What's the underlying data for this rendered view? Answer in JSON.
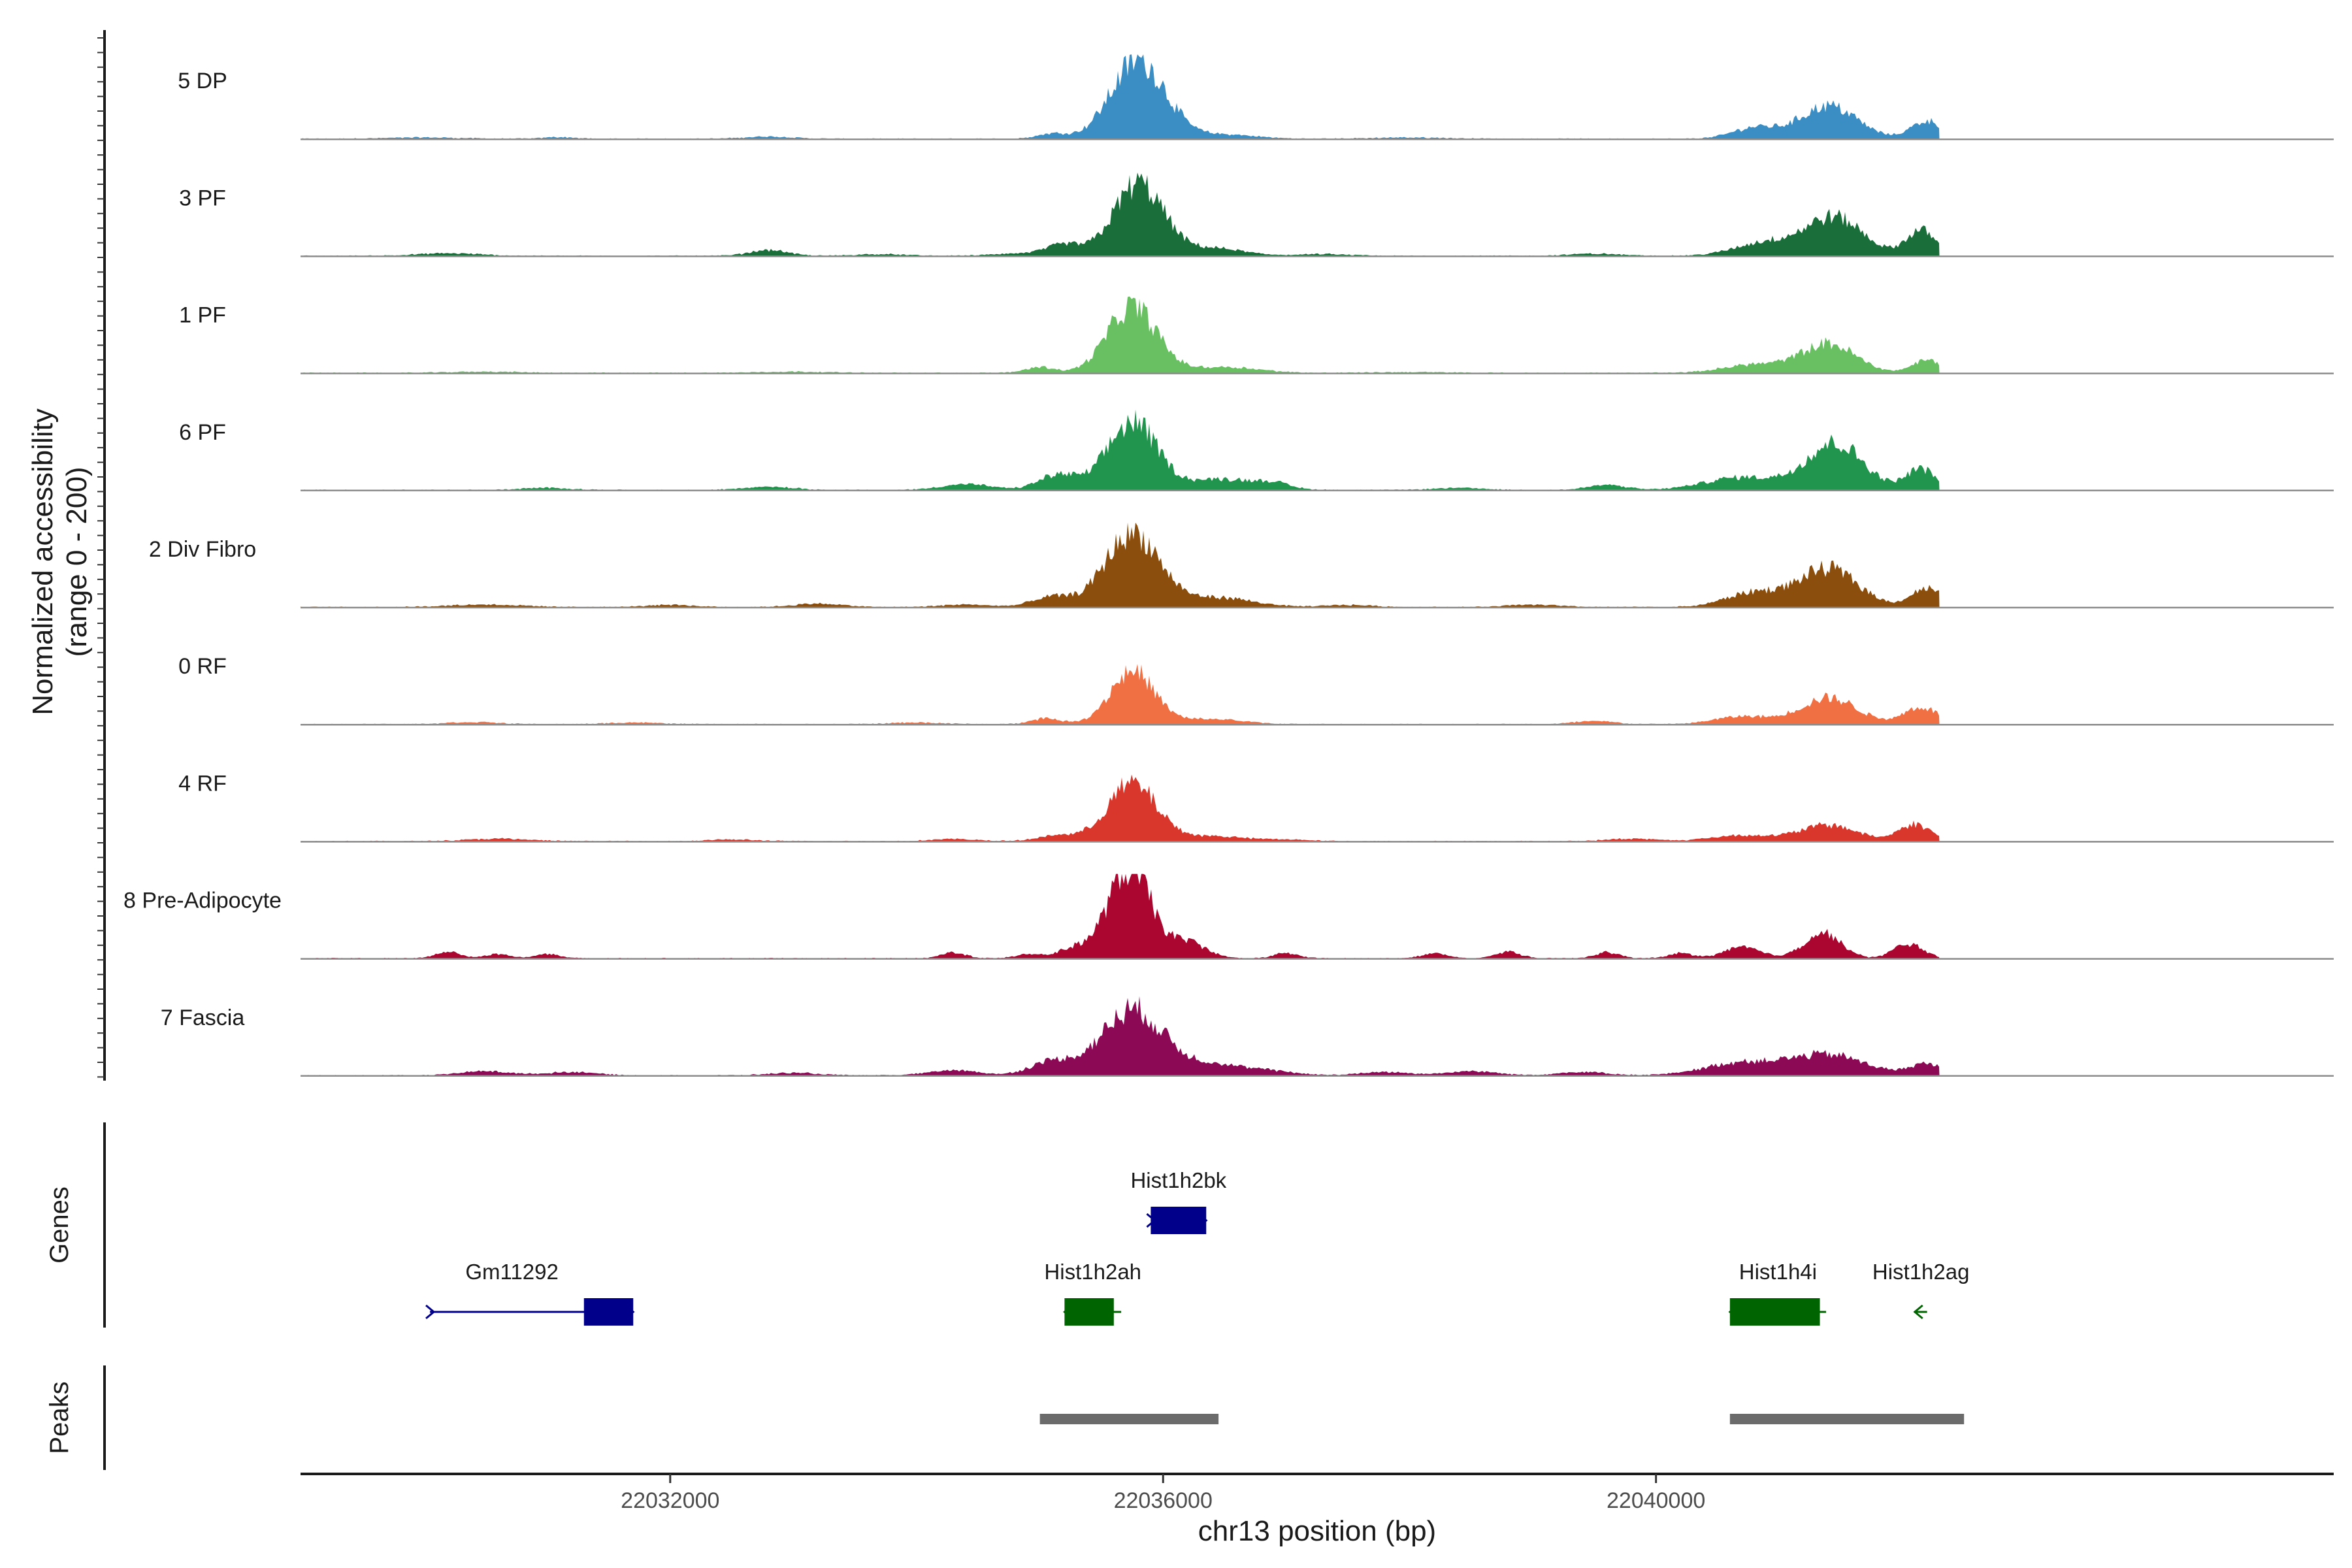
{
  "chart_data": {
    "type": "area",
    "title": "",
    "region": {
      "chromosome": "chr13",
      "start": 22029000,
      "end": 22045500
    },
    "xlabel": "chr13 position (bp)",
    "ylabel_line1": "Normalized accessibility",
    "ylabel_line2": "(range 0 - 200)",
    "ylim": [
      0,
      200
    ],
    "x_ticks": [
      22032000,
      22036000,
      22040000
    ],
    "x_tick_labels": [
      "22032000",
      "22036000",
      "22040000"
    ],
    "data_start": 22029000,
    "data_end": 22042300,
    "tracks": [
      {
        "name": "5 DP",
        "color": "#3a8ec4",
        "peaks": [
          [
            22035800,
            185,
            220
          ],
          [
            22035100,
            12,
            120
          ],
          [
            22036500,
            10,
            250
          ],
          [
            22041400,
            78,
            230
          ],
          [
            22040800,
            26,
            180
          ],
          [
            22042200,
            42,
            130
          ],
          [
            22030000,
            3,
            300
          ],
          [
            22031100,
            4,
            120
          ],
          [
            22032800,
            5,
            200
          ],
          [
            22038000,
            3,
            300
          ]
        ]
      },
      {
        "name": "3 PF",
        "color": "#1a6e3a",
        "peaks": [
          [
            22035800,
            170,
            200
          ],
          [
            22035200,
            26,
            150
          ],
          [
            22036400,
            18,
            250
          ],
          [
            22041450,
            90,
            230
          ],
          [
            22040900,
            32,
            250
          ],
          [
            22042150,
            60,
            120
          ],
          [
            22030200,
            6,
            250
          ],
          [
            22032800,
            14,
            150
          ],
          [
            22033700,
            4,
            200
          ],
          [
            22034800,
            5,
            200
          ],
          [
            22037300,
            4,
            200
          ],
          [
            22039500,
            5,
            200
          ]
        ]
      },
      {
        "name": "1 PF",
        "color": "#68c063",
        "peaks": [
          [
            22035750,
            155,
            200
          ],
          [
            22035000,
            14,
            120
          ],
          [
            22036500,
            14,
            280
          ],
          [
            22041400,
            68,
            220
          ],
          [
            22040800,
            20,
            250
          ],
          [
            22042200,
            30,
            120
          ],
          [
            22030500,
            3,
            300
          ],
          [
            22033000,
            3,
            300
          ],
          [
            22038000,
            2,
            300
          ]
        ]
      },
      {
        "name": "6 PF",
        "color": "#21954d",
        "peaks": [
          [
            22035750,
            160,
            200
          ],
          [
            22035150,
            36,
            160
          ],
          [
            22036500,
            26,
            300
          ],
          [
            22041450,
            110,
            230
          ],
          [
            22040700,
            30,
            300
          ],
          [
            22042150,
            50,
            120
          ],
          [
            22034400,
            14,
            200
          ],
          [
            22031000,
            5,
            200
          ],
          [
            22032800,
            8,
            200
          ],
          [
            22036900,
            10,
            120
          ],
          [
            22039600,
            12,
            150
          ],
          [
            22038400,
            5,
            200
          ]
        ]
      },
      {
        "name": "2 Div Fibro",
        "color": "#8b4e0c",
        "peaks": [
          [
            22035750,
            175,
            220
          ],
          [
            22035100,
            24,
            160
          ],
          [
            22036450,
            22,
            280
          ],
          [
            22041400,
            90,
            240
          ],
          [
            22040800,
            34,
            230
          ],
          [
            22042200,
            44,
            130
          ],
          [
            22030500,
            6,
            300
          ],
          [
            22032000,
            5,
            200
          ],
          [
            22033200,
            8,
            200
          ],
          [
            22034400,
            6,
            200
          ],
          [
            22037500,
            5,
            200
          ],
          [
            22039000,
            6,
            200
          ]
        ]
      },
      {
        "name": "0 RF",
        "color": "#f07044",
        "peaks": [
          [
            22035750,
            125,
            180
          ],
          [
            22035050,
            14,
            120
          ],
          [
            22036400,
            12,
            250
          ],
          [
            22041400,
            62,
            230
          ],
          [
            22040700,
            18,
            220
          ],
          [
            22042150,
            40,
            140
          ],
          [
            22030400,
            5,
            200
          ],
          [
            22031700,
            4,
            200
          ],
          [
            22034000,
            4,
            200
          ],
          [
            22039500,
            8,
            150
          ]
        ]
      },
      {
        "name": "4 RF",
        "color": "#d9362c",
        "peaks": [
          [
            22035750,
            135,
            200
          ],
          [
            22035150,
            14,
            160
          ],
          [
            22036400,
            12,
            250
          ],
          [
            22041400,
            38,
            230
          ],
          [
            22040700,
            14,
            250
          ],
          [
            22042100,
            40,
            130
          ],
          [
            22030600,
            6,
            250
          ],
          [
            22032500,
            4,
            200
          ],
          [
            22034300,
            5,
            200
          ],
          [
            22037000,
            4,
            200
          ],
          [
            22039800,
            6,
            200
          ]
        ]
      },
      {
        "name": "8 Pre-Adipocyte",
        "color": "#ab0630",
        "peaks": [
          [
            22035730,
            215,
            170
          ],
          [
            22035300,
            24,
            150
          ],
          [
            22036200,
            38,
            150
          ],
          [
            22041350,
            60,
            150
          ],
          [
            22040700,
            26,
            150
          ],
          [
            22042050,
            34,
            120
          ],
          [
            22030200,
            16,
            100
          ],
          [
            22030600,
            10,
            100
          ],
          [
            22031000,
            10,
            100
          ],
          [
            22034300,
            14,
            100
          ],
          [
            22034900,
            10,
            100
          ],
          [
            22037000,
            12,
            100
          ],
          [
            22038200,
            12,
            100
          ],
          [
            22038800,
            16,
            100
          ],
          [
            22039600,
            14,
            100
          ],
          [
            22040200,
            12,
            100
          ]
        ]
      },
      {
        "name": "7 Fascia",
        "color": "#8c0a55",
        "peaks": [
          [
            22035750,
            155,
            250
          ],
          [
            22035100,
            32,
            180
          ],
          [
            22036400,
            26,
            260
          ],
          [
            22041400,
            48,
            300
          ],
          [
            22040700,
            30,
            300
          ],
          [
            22042200,
            26,
            140
          ],
          [
            22030500,
            10,
            200
          ],
          [
            22031200,
            8,
            200
          ],
          [
            22033000,
            6,
            200
          ],
          [
            22034300,
            12,
            200
          ],
          [
            22036900,
            8,
            200
          ],
          [
            22037800,
            8,
            200
          ],
          [
            22038500,
            10,
            200
          ],
          [
            22039400,
            8,
            200
          ]
        ]
      }
    ],
    "genes": [
      {
        "name": "Hist1h2bk",
        "start": 22035900,
        "end": 22036350,
        "cds_start": 22035900,
        "cds_end": 22036350,
        "row": 1,
        "strand": "+",
        "color": "#00008b"
      },
      {
        "name": "Gm11292",
        "start": 22030050,
        "end": 22031700,
        "cds_start": 22031300,
        "cds_end": 22031700,
        "row": 2,
        "strand": "+",
        "color": "#00008b"
      },
      {
        "name": "Hist1h2ah",
        "start": 22035200,
        "end": 22035660,
        "cds_start": 22035200,
        "cds_end": 22035600,
        "row": 2,
        "strand": "-",
        "color": "#006400"
      },
      {
        "name": "Hist1h4i",
        "start": 22040600,
        "end": 22041380,
        "cds_start": 22040600,
        "cds_end": 22041330,
        "row": 2,
        "strand": "-",
        "color": "#006400"
      },
      {
        "name": "Hist1h2ag",
        "start": 22042100,
        "end": 22042200,
        "cds_start": 22042200,
        "cds_end": 22042200,
        "row": 2,
        "strand": "-",
        "color": "#006400"
      }
    ],
    "peak_regions": [
      [
        22035000,
        22036450
      ],
      [
        22040600,
        22042500
      ]
    ],
    "panel_titles": {
      "genes": "Genes",
      "peaks": "Peaks"
    },
    "grid": false
  }
}
